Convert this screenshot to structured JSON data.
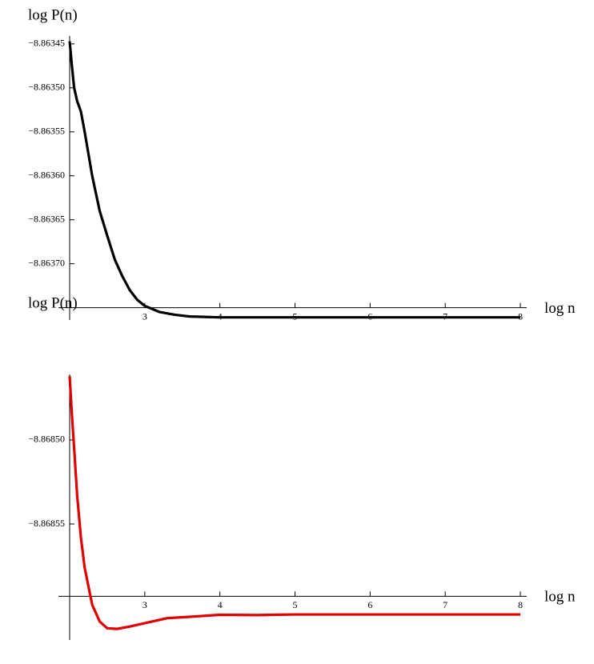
{
  "chart_data": [
    {
      "type": "line",
      "ylabel": "log P(n)",
      "xlabel": "log n",
      "x": [
        2,
        2.03,
        2.06,
        2.1,
        2.15,
        2.2,
        2.3,
        2.4,
        2.5,
        2.6,
        2.7,
        2.8,
        2.9,
        3.0,
        3.2,
        3.4,
        3.6,
        4,
        5,
        6,
        7,
        8
      ],
      "series": [
        {
          "color": "#000000",
          "values": [
            -8.863447,
            -8.863475,
            -8.8635,
            -8.863515,
            -8.863527,
            -8.86355,
            -8.8636,
            -8.86364,
            -8.863668,
            -8.863695,
            -8.863714,
            -8.86373,
            -8.863741,
            -8.863748,
            -8.863755,
            -8.863758,
            -8.86376,
            -8.863761,
            -8.863761,
            -8.863761,
            -8.863761,
            -8.863761
          ]
        }
      ],
      "xlim": [
        2,
        8
      ],
      "ylim": [
        -8.863764,
        -8.863441
      ],
      "origin": [
        2,
        -8.86375
      ],
      "xticks": [
        3,
        4,
        5,
        6,
        7,
        8
      ],
      "yticks": [
        {
          "value": -8.86345,
          "label": "−8.86345"
        },
        {
          "value": -8.8635,
          "label": "−8.86350"
        },
        {
          "value": -8.86355,
          "label": "−8.86355"
        },
        {
          "value": -8.8636,
          "label": "−8.86360"
        },
        {
          "value": -8.86365,
          "label": "−8.86365"
        },
        {
          "value": -8.8637,
          "label": "−8.86370"
        }
      ]
    },
    {
      "type": "line",
      "ylabel": "log P(n)",
      "xlabel": "log n",
      "x": [
        2,
        2.03,
        2.06,
        2.1,
        2.15,
        2.2,
        2.3,
        2.4,
        2.5,
        2.63,
        2.8,
        3.0,
        3.3,
        3.6,
        4,
        4.5,
        5,
        6,
        7,
        8
      ],
      "series": [
        {
          "color": "#e00000",
          "values": [
            -8.868462,
            -8.868485,
            -8.868505,
            -8.868533,
            -8.868558,
            -8.868576,
            -8.868598,
            -8.868608,
            -8.868612,
            -8.8686124,
            -8.868611,
            -8.868609,
            -8.868606,
            -8.8686052,
            -8.868604,
            -8.8686042,
            -8.8686038,
            -8.8686038,
            -8.8686038,
            -8.8686038
          ]
        }
      ],
      "xlim": [
        2,
        8
      ],
      "ylim": [
        -8.868619,
        -8.868461
      ],
      "origin": [
        2,
        -8.868593
      ],
      "xticks": [
        3,
        4,
        5,
        6,
        7,
        8
      ],
      "yticks": [
        {
          "value": -8.8685,
          "label": "−8.86850"
        },
        {
          "value": -8.86855,
          "label": "−8.86855"
        }
      ]
    }
  ]
}
